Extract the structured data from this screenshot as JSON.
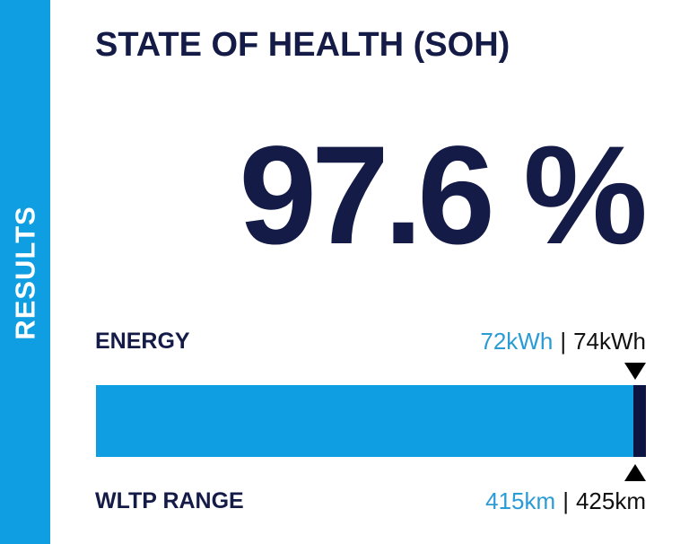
{
  "sidebar": {
    "label": "RESULTS",
    "color": "#109ee3"
  },
  "header": {
    "title": "STATE OF HEALTH (SOH)"
  },
  "soh": {
    "value_text": "97.6 %",
    "value": 97.6
  },
  "energy": {
    "label": "ENERGY",
    "current": "72kWh",
    "separator": "|",
    "total": "74kWh"
  },
  "range": {
    "label": "WLTP RANGE",
    "current": "415km",
    "separator": "|",
    "total": "425km"
  },
  "bar": {
    "fill_percent": 97.6,
    "fill_color": "#109ee3",
    "end_color": "#0d1442"
  },
  "colors": {
    "navy": "#141b47",
    "accent": "#2b9bd6"
  },
  "icons": {
    "top_marker": "triangle-down-icon",
    "bottom_marker": "triangle-up-icon"
  }
}
